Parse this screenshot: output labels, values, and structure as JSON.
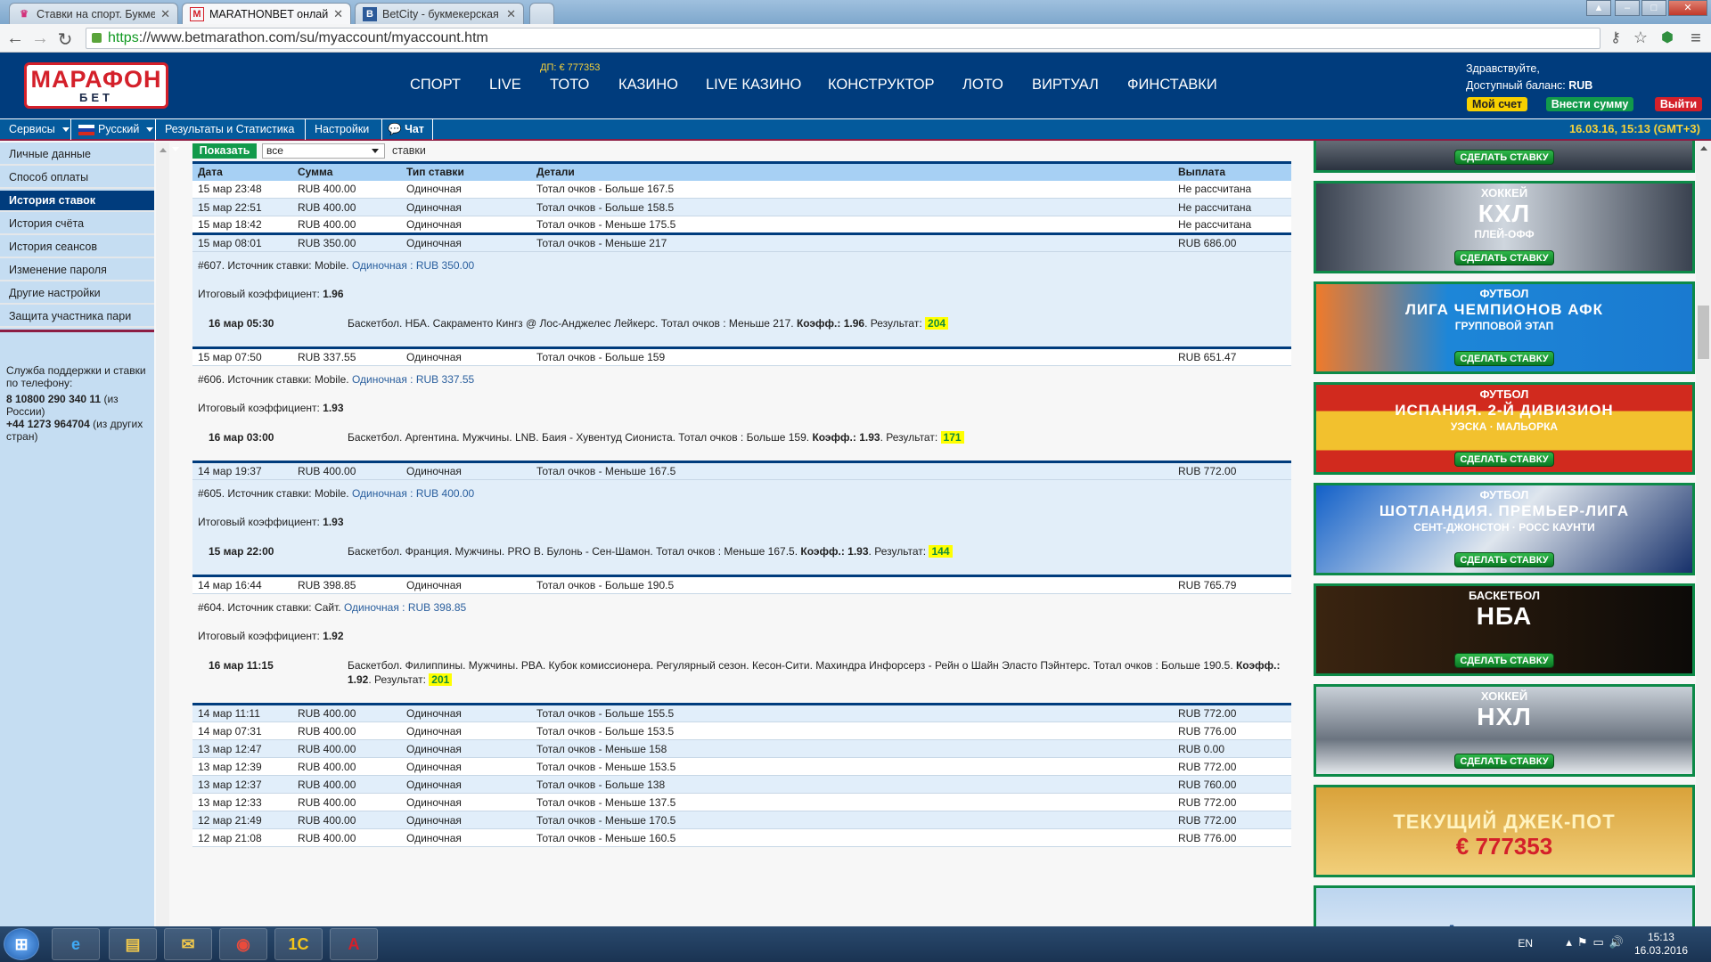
{
  "browser": {
    "tabs": [
      {
        "title": "Ставки на спорт. Букмекерская",
        "icon": "crown-icon"
      },
      {
        "title": "MARATHONBET онлайн букмекер",
        "icon": "marathon-m-icon",
        "active": true
      },
      {
        "title": "BetCity - букмекерская контора",
        "icon": "betcity-b-icon"
      }
    ],
    "url_scheme": "https",
    "url_rest": "://www.betmarathon.com/su/myaccount/myaccount.htm"
  },
  "header": {
    "logo_main": "МАРАФОН",
    "logo_sub": "БЕТ",
    "jackpot": "ДП: € 777353",
    "nav": [
      "СПОРТ",
      "LIVE",
      "ТОТО",
      "КАЗИНО",
      "LIVE КАЗИНО",
      "КОНСТРУКТОР",
      "ЛОТО",
      "ВИРТУАЛ",
      "ФИНСТАВКИ"
    ],
    "greeting": "Здравствуйте,",
    "balance_label": "Доступный баланс:",
    "balance_currency": "RUB",
    "btn_account": "Мой счет",
    "btn_deposit": "Внести сумму",
    "btn_logout": "Выйти",
    "colors": {
      "header": "#003c7d",
      "account": "#f7d000",
      "deposit": "#129a4b",
      "logout": "#d4202a"
    }
  },
  "subnav": {
    "services": "Сервисы",
    "language": "Русский",
    "results": "Результаты и Статистика",
    "settings": "Настройки",
    "chat": "Чат",
    "datetime": "16.03.16, 15:13 (GMT+3)"
  },
  "sidebar": {
    "items": [
      "Личные данные",
      "Способ оплаты",
      "История ставок",
      "История счёта",
      "История сеансов",
      "Изменение пароля",
      "Другие настройки",
      "Защита участника пари"
    ],
    "active": "История ставок",
    "support_title": "Служба поддержки и ставки по телефону:",
    "phone1": "8 10800 290 340 11",
    "phone1_note": " (из России)",
    "phone2": "+44 1273 964704",
    "phone2_note": " (из других стран)"
  },
  "filter": {
    "show": "Показать",
    "select": "все",
    "suffix": "ставки"
  },
  "table": {
    "headers": [
      "Дата",
      "Сумма",
      "Тип ставки",
      "Детали",
      "",
      "Выплата"
    ],
    "rows": [
      {
        "date": "15 мар 23:48",
        "amount": "RUB 400.00",
        "type": "Одиночная",
        "details": "Тотал очков - Больше 167.5",
        "payout": "Не рассчитана"
      },
      {
        "date": "15 мар 22:51",
        "amount": "RUB 400.00",
        "type": "Одиночная",
        "details": "Тотал очков - Больше 158.5",
        "payout": "Не рассчитана"
      },
      {
        "date": "15 мар 18:42",
        "amount": "RUB 400.00",
        "type": "Одиночная",
        "details": "Тотал очков - Меньше 175.5",
        "payout": "Не рассчитана"
      },
      {
        "date": "15 мар 08:01",
        "amount": "RUB 350.00",
        "type": "Одиночная",
        "details": "Тотал очков - Меньше 217",
        "payout": "RUB 686.00",
        "expanded": {
          "info": "#607. Источник ставки: Mobile. ",
          "info_link": "Одиночная : RUB 350.00",
          "coef_label": "Итоговый коэффициент: ",
          "coef": "1.96",
          "event_date": "16 мар 05:30",
          "event": "Баскетбол. НБА. Сакраменто Кингз @ Лос-Анджелес Лейкерс. Тотал очков : Меньше 217. ",
          "odds_label": "Коэфф.:",
          "odds": " 1.96",
          "result_label": ". Результат: ",
          "result": "204"
        }
      },
      {
        "date": "15 мар 07:50",
        "amount": "RUB 337.55",
        "type": "Одиночная",
        "details": "Тотал очков - Больше 159",
        "payout": "RUB 651.47",
        "expanded": {
          "info": "#606. Источник ставки: Mobile. ",
          "info_link": "Одиночная : RUB 337.55",
          "coef_label": "Итоговый коэффициент: ",
          "coef": "1.93",
          "event_date": "16 мар 03:00",
          "event": "Баскетбол. Аргентина. Мужчины. LNB. Баия - Хувентуд Сиониста. Тотал очков : Больше 159. ",
          "odds_label": "Коэфф.:",
          "odds": " 1.93",
          "result_label": ". Результат: ",
          "result": "171"
        }
      },
      {
        "date": "14 мар 19:37",
        "amount": "RUB 400.00",
        "type": "Одиночная",
        "details": "Тотал очков - Меньше 167.5",
        "payout": "RUB 772.00",
        "expanded": {
          "info": "#605. Источник ставки: Mobile. ",
          "info_link": "Одиночная : RUB 400.00",
          "coef_label": "Итоговый коэффициент: ",
          "coef": "1.93",
          "event_date": "15 мар 22:00",
          "event": "Баскетбол. Франция. Мужчины. PRO B. Булонь - Сен-Шамон. Тотал очков : Меньше 167.5. ",
          "odds_label": "Коэфф.:",
          "odds": " 1.93",
          "result_label": ". Результат: ",
          "result": "144"
        }
      },
      {
        "date": "14 мар 16:44",
        "amount": "RUB 398.85",
        "type": "Одиночная",
        "details": "Тотал очков - Больше 190.5",
        "payout": "RUB 765.79",
        "expanded": {
          "info": "#604. Источник ставки: Сайт. ",
          "info_link": "Одиночная : RUB 398.85",
          "coef_label": "Итоговый коэффициент: ",
          "coef": "1.92",
          "event_date": "16 мар 11:15",
          "event": "Баскетбол. Филиппины. Мужчины. PBA. Кубок комиссионера. Регулярный сезон. Кесон-Сити. Махиндра Инфорсерз - Рейн о Шайн Эласто Пэйнтерс. Тотал очков : Больше 190.5. ",
          "odds_label": "Коэфф.:",
          "odds": " 1.92",
          "result_label": ". Результат: ",
          "result": "201"
        }
      },
      {
        "date": "14 мар 11:11",
        "amount": "RUB 400.00",
        "type": "Одиночная",
        "details": "Тотал очков - Больше 155.5",
        "payout": "RUB 772.00"
      },
      {
        "date": "14 мар 07:31",
        "amount": "RUB 400.00",
        "type": "Одиночная",
        "details": "Тотал очков - Больше 153.5",
        "payout": "RUB 776.00"
      },
      {
        "date": "13 мар 12:47",
        "amount": "RUB 400.00",
        "type": "Одиночная",
        "details": "Тотал очков - Меньше 158",
        "payout": "RUB 0.00"
      },
      {
        "date": "13 мар 12:39",
        "amount": "RUB 400.00",
        "type": "Одиночная",
        "details": "Тотал очков - Меньше 153.5",
        "payout": "RUB 772.00"
      },
      {
        "date": "13 мар 12:37",
        "amount": "RUB 400.00",
        "type": "Одиночная",
        "details": "Тотал очков - Больше 138",
        "payout": "RUB 760.00"
      },
      {
        "date": "13 мар 12:33",
        "amount": "RUB 400.00",
        "type": "Одиночная",
        "details": "Тотал очков - Меньше 137.5",
        "payout": "RUB 772.00"
      },
      {
        "date": "12 мар 21:49",
        "amount": "RUB 400.00",
        "type": "Одиночная",
        "details": "Тотал очков - Меньше 170.5",
        "payout": "RUB 772.00"
      },
      {
        "date": "12 мар 21:08",
        "amount": "RUB 400.00",
        "type": "Одиночная",
        "details": "Тотал очков - Меньше 160.5",
        "payout": "RUB 776.00"
      }
    ]
  },
  "banners": [
    {
      "t1": "",
      "t2": "",
      "t3": "",
      "cta": "СДЕЛАТЬ СТАВКУ",
      "bg": "linear-gradient(#d8dde2,#2b3340)"
    },
    {
      "t1": "ХОККЕЙ",
      "t2": "КХЛ",
      "t3": "ПЛЕЙ-ОФФ",
      "cta": "СДЕЛАТЬ СТАВКУ",
      "bg": "linear-gradient(90deg,#3a4250,#cfd6de 50%,#3a4250)"
    },
    {
      "t1": "ФУТБОЛ",
      "t2": "ЛИГА ЧЕМПИОНОВ АФК",
      "t3": "ГРУППОВОЙ ЭТАП",
      "cta": "СДЕЛАТЬ СТАВКУ",
      "bg": "linear-gradient(90deg,#f07a2a,#1d86d8 35%,#1a7ad0)"
    },
    {
      "t1": "ФУТБОЛ",
      "t2": "ИСПАНИЯ. 2-Й ДИВИЗИОН",
      "t3": "УЭСКА · МАЛЬОРКА",
      "cta": "СДЕЛАТЬ СТАВКУ",
      "bg": "linear-gradient(#d12a1e 30%,#f2c12e 30%,#f2c12e 75%,#d12a1e 75%)"
    },
    {
      "t1": "ФУТБОЛ",
      "t2": "ШОТЛАНДИЯ. ПРЕМЬЕР-ЛИГА",
      "t3": "СЕНТ-ДЖОНСТОН · РОСС КАУНТИ",
      "cta": "СДЕЛАТЬ СТАВКУ",
      "bg": "linear-gradient(135deg,#1260c8,#dfe6ee 50%,#16306a)"
    },
    {
      "t1": "БАСКЕТБОЛ",
      "t2": "НБА",
      "t3": "",
      "cta": "СДЕЛАТЬ СТАВКУ",
      "bg": "linear-gradient(90deg,#3a2410,#0c0a08)"
    },
    {
      "t1": "ХОККЕЙ",
      "t2": "НХЛ",
      "t3": "",
      "cta": "СДЕЛАТЬ СТАВКУ",
      "bg": "linear-gradient(#c9d0d8,#6b7480 60%,#e4e8ec)"
    },
    {
      "t1": "",
      "t2": "ТЕКУЩИЙ ДЖЕК-ПОТ",
      "t3": "€ 777353",
      "cta": "",
      "bg": "linear-gradient(#d9a23a,#f1cf7a)"
    },
    {
      "t1": "",
      "t2": "Авансовые",
      "t3": "",
      "cta": "",
      "bg": "linear-gradient(#bcd5ef,#eaf2fb)"
    }
  ],
  "taskbar": {
    "apps": [
      "start-orb-icon",
      "ie-icon",
      "explorer-icon",
      "outlook-icon",
      "chrome-icon",
      "1c-icon",
      "acrobat-icon"
    ],
    "lang": "EN",
    "time": "15:13",
    "date": "16.03.2016"
  }
}
